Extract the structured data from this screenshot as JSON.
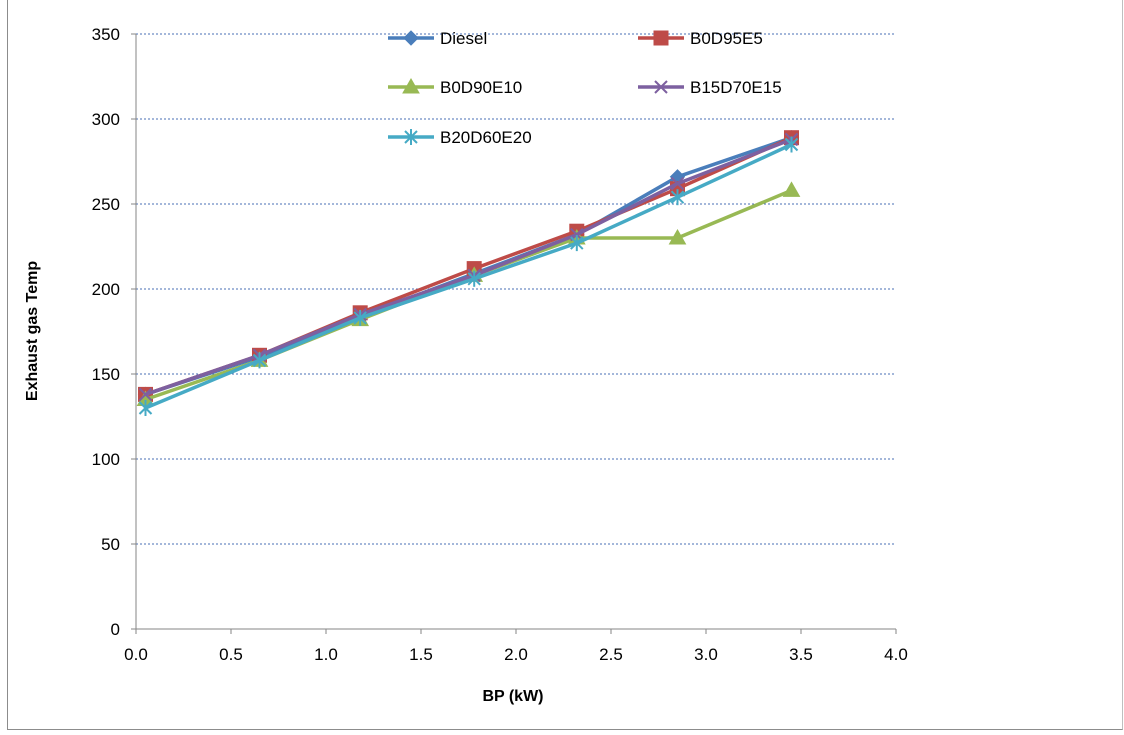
{
  "chart_data": {
    "type": "line",
    "title": "",
    "xlabel": "BP (kW)",
    "ylabel": "Exhaust gas Temp",
    "xlim": [
      0.0,
      4.0
    ],
    "ylim": [
      0,
      350
    ],
    "xticks": [
      0.0,
      0.5,
      1.0,
      1.5,
      2.0,
      2.5,
      3.0,
      3.5,
      4.0
    ],
    "xtick_labels": [
      "0.0",
      "0.5",
      "1.0",
      "1.5",
      "2.0",
      "2.5",
      "3.0",
      "3.5",
      "4.0"
    ],
    "yticks": [
      0,
      50,
      100,
      150,
      200,
      250,
      300,
      350
    ],
    "ytick_labels": [
      "0",
      "50",
      "100",
      "150",
      "200",
      "250",
      "300",
      "350"
    ],
    "grid": "horizontal dashed",
    "legend_position": "top",
    "series": [
      {
        "name": "Diesel",
        "color": "#4a7ebb",
        "marker": "diamond",
        "x": [
          0.05,
          0.65,
          1.18,
          1.78,
          2.32,
          2.85,
          3.45
        ],
        "y": [
          138,
          160,
          184,
          209,
          232,
          266,
          289
        ]
      },
      {
        "name": "B0D95E5",
        "color": "#be4b48",
        "marker": "square",
        "x": [
          0.05,
          0.65,
          1.18,
          1.78,
          2.32,
          2.85,
          3.45
        ],
        "y": [
          138,
          161,
          186,
          212,
          234,
          259,
          289
        ]
      },
      {
        "name": "B0D90E10",
        "color": "#98b954",
        "marker": "triangle",
        "x": [
          0.05,
          0.65,
          1.18,
          1.78,
          2.32,
          2.85,
          3.45
        ],
        "y": [
          135,
          158,
          182,
          208,
          230,
          230,
          258
        ]
      },
      {
        "name": "B15D70E15",
        "color": "#7d60a0",
        "marker": "x",
        "x": [
          0.05,
          0.65,
          1.18,
          1.78,
          2.32,
          2.85,
          3.45
        ],
        "y": [
          138,
          161,
          185,
          208,
          232,
          262,
          288
        ]
      },
      {
        "name": "B20D60E20",
        "color": "#46aac5",
        "marker": "star",
        "x": [
          0.05,
          0.65,
          1.18,
          1.78,
          2.32,
          2.85,
          3.45
        ],
        "y": [
          130,
          158,
          183,
          206,
          227,
          254,
          285
        ]
      }
    ]
  }
}
